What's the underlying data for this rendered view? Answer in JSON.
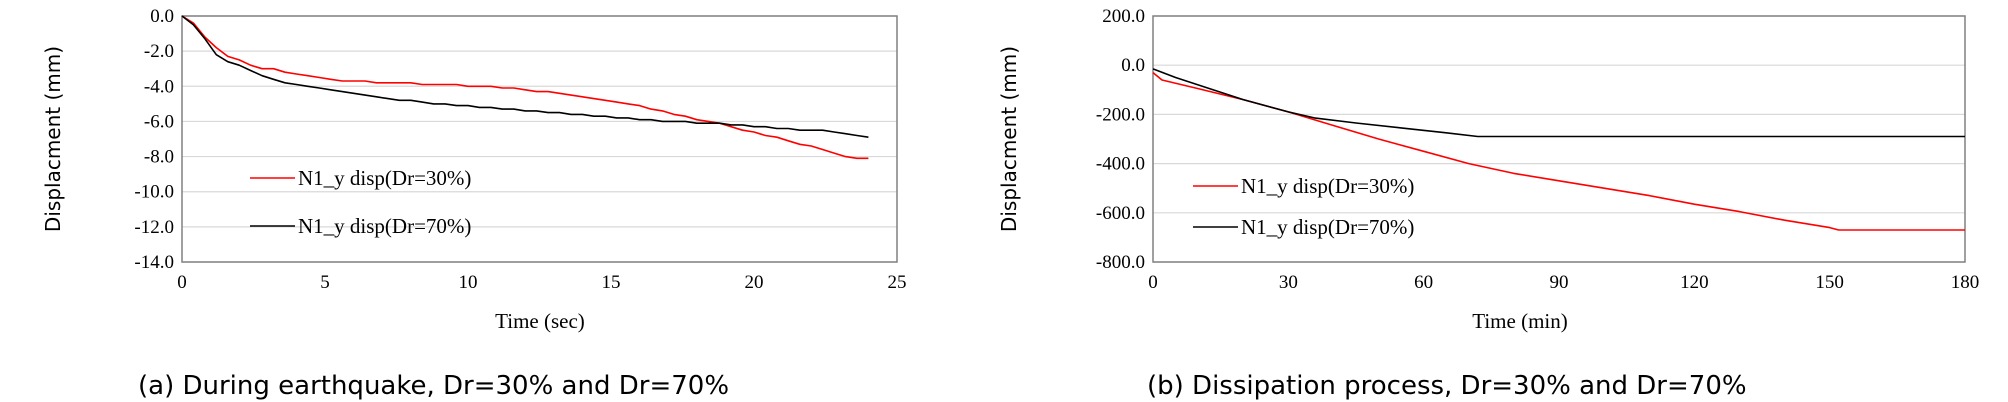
{
  "chart_data": [
    {
      "type": "line",
      "caption": "(a) During earthquake, Dr=30% and Dr=70%",
      "xlabel": "Time (sec)",
      "ylabel": "Displacment (mm)",
      "xlim": [
        0,
        25
      ],
      "ylim": [
        -14,
        0
      ],
      "xticks": [
        0,
        5,
        10,
        15,
        20,
        25
      ],
      "xtick_labels": [
        "0",
        "5",
        "10",
        "15",
        "20",
        "25"
      ],
      "yticks": [
        0,
        -2,
        -4,
        -6,
        -8,
        -10,
        -12,
        -14
      ],
      "ytick_labels": [
        "0.0",
        "-2.0",
        "-4.0",
        "-6.0",
        "-8.0",
        "-10.0",
        "-12.0",
        "-14.0"
      ],
      "grid": "horizontal",
      "legend_position": "lower-left",
      "series": [
        {
          "name": "N1_y disp(Dr=30%)",
          "color": "#ff0000",
          "x": [
            0,
            0.4,
            0.8,
            1.2,
            1.6,
            2.0,
            2.4,
            2.8,
            3.2,
            3.6,
            4.0,
            4.4,
            4.8,
            5.2,
            5.6,
            6.0,
            6.4,
            6.8,
            7.2,
            7.6,
            8.0,
            8.4,
            8.8,
            9.2,
            9.6,
            10.0,
            10.4,
            10.8,
            11.2,
            11.6,
            12.0,
            12.4,
            12.8,
            13.2,
            13.6,
            14.0,
            14.4,
            14.8,
            15.2,
            15.6,
            16.0,
            16.4,
            16.8,
            17.2,
            17.6,
            18.0,
            18.4,
            18.8,
            19.2,
            19.6,
            20.0,
            20.4,
            20.8,
            21.2,
            21.6,
            22.0,
            22.4,
            22.8,
            23.2,
            23.6,
            24.0
          ],
          "y": [
            0,
            -0.4,
            -1.2,
            -1.8,
            -2.3,
            -2.5,
            -2.8,
            -3.0,
            -3.0,
            -3.2,
            -3.3,
            -3.4,
            -3.5,
            -3.6,
            -3.7,
            -3.7,
            -3.7,
            -3.8,
            -3.8,
            -3.8,
            -3.8,
            -3.9,
            -3.9,
            -3.9,
            -3.9,
            -4.0,
            -4.0,
            -4.0,
            -4.1,
            -4.1,
            -4.2,
            -4.3,
            -4.3,
            -4.4,
            -4.5,
            -4.6,
            -4.7,
            -4.8,
            -4.9,
            -5.0,
            -5.1,
            -5.3,
            -5.4,
            -5.6,
            -5.7,
            -5.9,
            -6.0,
            -6.1,
            -6.3,
            -6.5,
            -6.6,
            -6.8,
            -6.9,
            -7.1,
            -7.3,
            -7.4,
            -7.6,
            -7.8,
            -8.0,
            -8.1,
            -8.1
          ]
        },
        {
          "name": "N1_y disp(Dr=70%)",
          "color": "#000000",
          "x": [
            0,
            0.4,
            0.8,
            1.2,
            1.6,
            2.0,
            2.4,
            2.8,
            3.2,
            3.6,
            4.0,
            4.4,
            4.8,
            5.2,
            5.6,
            6.0,
            6.4,
            6.8,
            7.2,
            7.6,
            8.0,
            8.4,
            8.8,
            9.2,
            9.6,
            10.0,
            10.4,
            10.8,
            11.2,
            11.6,
            12.0,
            12.4,
            12.8,
            13.2,
            13.6,
            14.0,
            14.4,
            14.8,
            15.2,
            15.6,
            16.0,
            16.4,
            16.8,
            17.2,
            17.6,
            18.0,
            18.4,
            18.8,
            19.2,
            19.6,
            20.0,
            20.4,
            20.8,
            21.2,
            21.6,
            22.0,
            22.4,
            22.8,
            23.2,
            23.6,
            24.0
          ],
          "y": [
            0,
            -0.5,
            -1.3,
            -2.2,
            -2.6,
            -2.8,
            -3.1,
            -3.4,
            -3.6,
            -3.8,
            -3.9,
            -4.0,
            -4.1,
            -4.2,
            -4.3,
            -4.4,
            -4.5,
            -4.6,
            -4.7,
            -4.8,
            -4.8,
            -4.9,
            -5.0,
            -5.0,
            -5.1,
            -5.1,
            -5.2,
            -5.2,
            -5.3,
            -5.3,
            -5.4,
            -5.4,
            -5.5,
            -5.5,
            -5.6,
            -5.6,
            -5.7,
            -5.7,
            -5.8,
            -5.8,
            -5.9,
            -5.9,
            -6.0,
            -6.0,
            -6.0,
            -6.1,
            -6.1,
            -6.1,
            -6.2,
            -6.2,
            -6.3,
            -6.3,
            -6.4,
            -6.4,
            -6.5,
            -6.5,
            -6.5,
            -6.6,
            -6.7,
            -6.8,
            -6.9
          ]
        }
      ]
    },
    {
      "type": "line",
      "caption": "(b) Dissipation process, Dr=30% and Dr=70%",
      "xlabel": "Time (min)",
      "ylabel": "Displacment (mm)",
      "xlim": [
        0,
        180
      ],
      "ylim": [
        -800,
        200
      ],
      "xticks": [
        0,
        30,
        60,
        90,
        120,
        150,
        180
      ],
      "xtick_labels": [
        "0",
        "30",
        "60",
        "90",
        "120",
        "150",
        "180"
      ],
      "yticks": [
        200,
        0,
        -200,
        -400,
        -600,
        -800
      ],
      "ytick_labels": [
        "200.0",
        "0.0",
        "-200.0",
        "-400.0",
        "-600.0",
        "-800.0"
      ],
      "grid": "horizontal",
      "legend_position": "lower-left",
      "series": [
        {
          "name": "N1_y disp(Dr=30%)",
          "color": "#ff0000",
          "x": [
            0,
            2,
            10,
            20,
            30,
            40,
            50,
            60,
            70,
            80,
            90,
            100,
            110,
            120,
            130,
            140,
            150,
            152,
            160,
            170,
            180
          ],
          "y": [
            -30,
            -60,
            -95,
            -140,
            -190,
            -245,
            -300,
            -350,
            -400,
            -440,
            -470,
            -500,
            -530,
            -565,
            -595,
            -630,
            -660,
            -670,
            -670,
            -670,
            -670
          ]
        },
        {
          "name": "N1_y disp(Dr=70%)",
          "color": "#000000",
          "x": [
            0,
            5,
            10,
            20,
            30,
            36,
            45,
            55,
            65,
            72,
            80,
            100,
            120,
            140,
            160,
            180
          ],
          "y": [
            -15,
            -50,
            -80,
            -140,
            -190,
            -215,
            -235,
            -255,
            -275,
            -290,
            -290,
            -290,
            -290,
            -290,
            -290,
            -290
          ]
        }
      ]
    }
  ]
}
